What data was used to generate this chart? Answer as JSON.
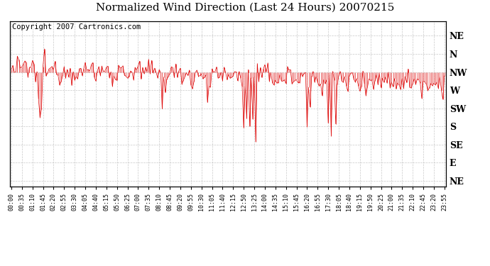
{
  "title": "Normalized Wind Direction (Last 24 Hours) 20070215",
  "copyright_text": "Copyright 2007 Cartronics.com",
  "line_color": "#dd0000",
  "background_color": "#ffffff",
  "plot_bg_color": "#ffffff",
  "grid_color": "#bbbbbb",
  "ytick_labels": [
    "NE",
    "N",
    "NW",
    "W",
    "SW",
    "S",
    "SE",
    "E",
    "NE"
  ],
  "ytick_values": [
    8,
    7,
    6,
    5,
    4,
    3,
    2,
    1,
    0
  ],
  "ylim": [
    -0.3,
    8.8
  ],
  "seed": 12345,
  "n_points": 288,
  "title_fontsize": 11,
  "copyright_fontsize": 7.5,
  "tick_interval_minutes": 35,
  "data_interval_minutes": 5
}
